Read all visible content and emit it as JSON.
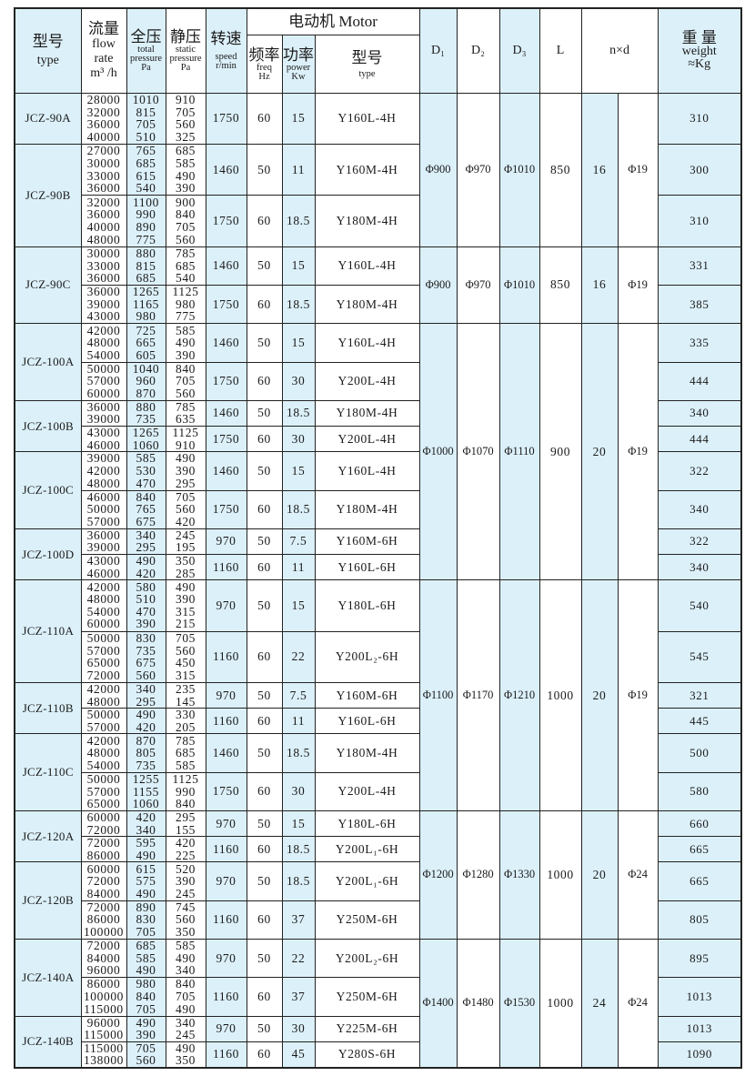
{
  "header": {
    "type_cn": "型号",
    "type_en": "type",
    "flow_cn": "流量",
    "flow_en1": "flow",
    "flow_en2": "rate",
    "flow_unit": "m³ /h",
    "total_cn": "全压",
    "total_en": "total pressure",
    "total_unit": "Pa",
    "static_cn": "静压",
    "static_en": "static pressure",
    "static_unit": "Pa",
    "speed_cn": "转速",
    "speed_en": "speed",
    "speed_unit": "r/min",
    "motor": "电动机 Motor",
    "freq_cn": "频率",
    "freq_en": "freq",
    "freq_unit": "Hz",
    "power_cn": "功率",
    "power_en": "power",
    "power_unit": "Kw",
    "mtype_cn": "型号",
    "mtype_en": "type",
    "d1": "D₁",
    "d2": "D₂",
    "d3": "D₃",
    "l": "L",
    "nd": "n×d",
    "weight_cn": "重 量",
    "weight_en": "weight",
    "weight_unit": "≈Kg"
  },
  "colors": {
    "highlight": "#dcf0f9",
    "border": "#222222"
  },
  "groups": [
    {
      "D1": "Φ900",
      "D2": "Φ970",
      "D3": "Φ1010",
      "L": "850",
      "n": "16",
      "d": "Φ19",
      "models": [
        {
          "type": "JCZ-90A",
          "runs": [
            {
              "flow": [
                "28000",
                "32000",
                "36000",
                "40000"
              ],
              "total": [
                "1010",
                "815",
                "705",
                "510"
              ],
              "static": [
                "910",
                "705",
                "560",
                "325"
              ],
              "speed": "1750",
              "freq": "60",
              "power": "15",
              "motor": "Y160L-4H",
              "weight": "310"
            }
          ]
        },
        {
          "type": "JCZ-90B",
          "runs": [
            {
              "flow": [
                "27000",
                "30000",
                "33000",
                "36000"
              ],
              "total": [
                "765",
                "685",
                "615",
                "540"
              ],
              "static": [
                "685",
                "585",
                "490",
                "390"
              ],
              "speed": "1460",
              "freq": "50",
              "power": "11",
              "motor": "Y160M-4H",
              "weight": "300"
            },
            {
              "flow": [
                "32000",
                "36000",
                "40000",
                "48000"
              ],
              "total": [
                "1100",
                "990",
                "890",
                "775"
              ],
              "static": [
                "900",
                "840",
                "705",
                "560"
              ],
              "speed": "1750",
              "freq": "60",
              "power": "18.5",
              "motor": "Y180M-4H",
              "weight": "310"
            }
          ]
        }
      ]
    },
    {
      "D1": "Φ900",
      "D2": "Φ970",
      "D3": "Φ1010",
      "L": "850",
      "n": "16",
      "d": "Φ19",
      "models": [
        {
          "type": "JCZ-90C",
          "runs": [
            {
              "flow": [
                "30000",
                "33000",
                "36000"
              ],
              "total": [
                "880",
                "815",
                "685"
              ],
              "static": [
                "785",
                "685",
                "540"
              ],
              "speed": "1460",
              "freq": "50",
              "power": "15",
              "motor": "Y160L-4H",
              "weight": "331"
            },
            {
              "flow": [
                "36000",
                "39000",
                "43000"
              ],
              "total": [
                "1265",
                "1165",
                "980"
              ],
              "static": [
                "1125",
                "980",
                "775"
              ],
              "speed": "1750",
              "freq": "60",
              "power": "18.5",
              "motor": "Y180M-4H",
              "weight": "385"
            }
          ]
        }
      ]
    },
    {
      "D1": "Φ1000",
      "D2": "Φ1070",
      "D3": "Φ1110",
      "L": "900",
      "n": "20",
      "d": "Φ19",
      "models": [
        {
          "type": "JCZ-100A",
          "runs": [
            {
              "flow": [
                "42000",
                "48000",
                "54000"
              ],
              "total": [
                "725",
                "665",
                "605"
              ],
              "static": [
                "585",
                "490",
                "390"
              ],
              "speed": "1460",
              "freq": "50",
              "power": "15",
              "motor": "Y160L-4H",
              "weight": "335"
            },
            {
              "flow": [
                "50000",
                "57000",
                "60000"
              ],
              "total": [
                "1040",
                "960",
                "870"
              ],
              "static": [
                "840",
                "705",
                "560"
              ],
              "speed": "1750",
              "freq": "60",
              "power": "30",
              "motor": "Y200L-4H",
              "weight": "444"
            }
          ]
        },
        {
          "type": "JCZ-100B",
          "runs": [
            {
              "flow": [
                "36000",
                "39000"
              ],
              "total": [
                "880",
                "735"
              ],
              "static": [
                "785",
                "635"
              ],
              "speed": "1460",
              "freq": "50",
              "power": "18.5",
              "motor": "Y180M-4H",
              "weight": "340"
            },
            {
              "flow": [
                "43000",
                "46000"
              ],
              "total": [
                "1265",
                "1060"
              ],
              "static": [
                "1125",
                "910"
              ],
              "speed": "1750",
              "freq": "60",
              "power": "30",
              "motor": "Y200L-4H",
              "weight": "444"
            }
          ]
        },
        {
          "type": "JCZ-100C",
          "runs": [
            {
              "flow": [
                "39000",
                "42000",
                "48000"
              ],
              "total": [
                "585",
                "530",
                "470"
              ],
              "static": [
                "490",
                "390",
                "295"
              ],
              "speed": "1460",
              "freq": "50",
              "power": "15",
              "motor": "Y160L-4H",
              "weight": "322"
            },
            {
              "flow": [
                "46000",
                "50000",
                "57000"
              ],
              "total": [
                "840",
                "765",
                "675"
              ],
              "static": [
                "705",
                "560",
                "420"
              ],
              "speed": "1750",
              "freq": "60",
              "power": "18.5",
              "motor": "Y180M-4H",
              "weight": "340"
            }
          ]
        },
        {
          "type": "JCZ-100D",
          "runs": [
            {
              "flow": [
                "36000",
                "39000"
              ],
              "total": [
                "340",
                "295"
              ],
              "static": [
                "245",
                "195"
              ],
              "speed": "970",
              "freq": "50",
              "power": "7.5",
              "motor": "Y160M-6H",
              "weight": "322"
            },
            {
              "flow": [
                "43000",
                "46000"
              ],
              "total": [
                "490",
                "420"
              ],
              "static": [
                "350",
                "285"
              ],
              "speed": "1160",
              "freq": "60",
              "power": "11",
              "motor": "Y160L-6H",
              "weight": "340"
            }
          ]
        }
      ]
    },
    {
      "D1": "Φ1100",
      "D2": "Φ1170",
      "D3": "Φ1210",
      "L": "1000",
      "n": "20",
      "d": "Φ19",
      "models": [
        {
          "type": "JCZ-110A",
          "runs": [
            {
              "flow": [
                "42000",
                "48000",
                "54000",
                "60000"
              ],
              "total": [
                "580",
                "510",
                "470",
                "390"
              ],
              "static": [
                "490",
                "390",
                "315",
                "215"
              ],
              "speed": "970",
              "freq": "50",
              "power": "15",
              "motor": "Y180L-6H",
              "weight": "540"
            },
            {
              "flow": [
                "50000",
                "57000",
                "65000",
                "72000"
              ],
              "total": [
                "830",
                "735",
                "675",
                "560"
              ],
              "static": [
                "705",
                "560",
                "450",
                "315"
              ],
              "speed": "1160",
              "freq": "60",
              "power": "22",
              "motor": "Y200L₂-6H",
              "weight": "545"
            }
          ]
        },
        {
          "type": "JCZ-110B",
          "runs": [
            {
              "flow": [
                "42000",
                "48000"
              ],
              "total": [
                "340",
                "295"
              ],
              "static": [
                "235",
                "145"
              ],
              "speed": "970",
              "freq": "50",
              "power": "7.5",
              "motor": "Y160M-6H",
              "weight": "321"
            },
            {
              "flow": [
                "50000",
                "57000"
              ],
              "total": [
                "490",
                "420"
              ],
              "static": [
                "330",
                "205"
              ],
              "speed": "1160",
              "freq": "60",
              "power": "11",
              "motor": "Y160L-6H",
              "weight": "445"
            }
          ]
        },
        {
          "type": "JCZ-110C",
          "runs": [
            {
              "flow": [
                "42000",
                "48000",
                "54000"
              ],
              "total": [
                "870",
                "805",
                "735"
              ],
              "static": [
                "785",
                "685",
                "585"
              ],
              "speed": "1460",
              "freq": "50",
              "power": "18.5",
              "motor": "Y180M-4H",
              "weight": "500"
            },
            {
              "flow": [
                "50000",
                "57000",
                "65000"
              ],
              "total": [
                "1255",
                "1155",
                "1060"
              ],
              "static": [
                "1125",
                "990",
                "840"
              ],
              "speed": "1750",
              "freq": "60",
              "power": "30",
              "motor": "Y200L-4H",
              "weight": "580"
            }
          ]
        }
      ]
    },
    {
      "D1": "Φ1200",
      "D2": "Φ1280",
      "D3": "Φ1330",
      "L": "1000",
      "n": "20",
      "d": "Φ24",
      "models": [
        {
          "type": "JCZ-120A",
          "runs": [
            {
              "flow": [
                "60000",
                "72000"
              ],
              "total": [
                "420",
                "340"
              ],
              "static": [
                "295",
                "155"
              ],
              "speed": "970",
              "freq": "50",
              "power": "15",
              "motor": "Y180L-6H",
              "weight": "660"
            },
            {
              "flow": [
                "72000",
                "86000"
              ],
              "total": [
                "595",
                "490"
              ],
              "static": [
                "420",
                "225"
              ],
              "speed": "1160",
              "freq": "60",
              "power": "18.5",
              "motor": "Y200L₁-6H",
              "weight": "665"
            }
          ]
        },
        {
          "type": "JCZ-120B",
          "runs": [
            {
              "flow": [
                "60000",
                "72000",
                "84000"
              ],
              "total": [
                "615",
                "575",
                "490"
              ],
              "static": [
                "520",
                "390",
                "245"
              ],
              "speed": "970",
              "freq": "50",
              "power": "18.5",
              "motor": "Y200L₁-6H",
              "weight": "665"
            },
            {
              "flow": [
                "72000",
                "86000",
                "100000"
              ],
              "total": [
                "890",
                "830",
                "705"
              ],
              "static": [
                "745",
                "560",
                "350"
              ],
              "speed": "1160",
              "freq": "60",
              "power": "37",
              "motor": "Y250M-6H",
              "weight": "805"
            }
          ]
        }
      ]
    },
    {
      "D1": "Φ1400",
      "D2": "Φ1480",
      "D3": "Φ1530",
      "L": "1000",
      "n": "24",
      "d": "Φ24",
      "models": [
        {
          "type": "JCZ-140A",
          "runs": [
            {
              "flow": [
                "72000",
                "84000",
                "96000"
              ],
              "total": [
                "685",
                "585",
                "490"
              ],
              "static": [
                "585",
                "490",
                "340"
              ],
              "speed": "970",
              "freq": "50",
              "power": "22",
              "motor": "Y200L₂-6H",
              "weight": "895"
            },
            {
              "flow": [
                "86000",
                "100000",
                "115000"
              ],
              "total": [
                "980",
                "840",
                "705"
              ],
              "static": [
                "840",
                "705",
                "490"
              ],
              "speed": "1160",
              "freq": "60",
              "power": "37",
              "motor": "Y250M-6H",
              "weight": "1013"
            }
          ]
        },
        {
          "type": "JCZ-140B",
          "runs": [
            {
              "flow": [
                "96000",
                "115000"
              ],
              "total": [
                "490",
                "390"
              ],
              "static": [
                "340",
                "245"
              ],
              "speed": "970",
              "freq": "50",
              "power": "30",
              "motor": "Y225M-6H",
              "weight": "1013"
            },
            {
              "flow": [
                "115000",
                "138000"
              ],
              "total": [
                "705",
                "560"
              ],
              "static": [
                "490",
                "350"
              ],
              "speed": "1160",
              "freq": "60",
              "power": "45",
              "motor": "Y280S-6H",
              "weight": "1090"
            }
          ]
        }
      ]
    }
  ]
}
